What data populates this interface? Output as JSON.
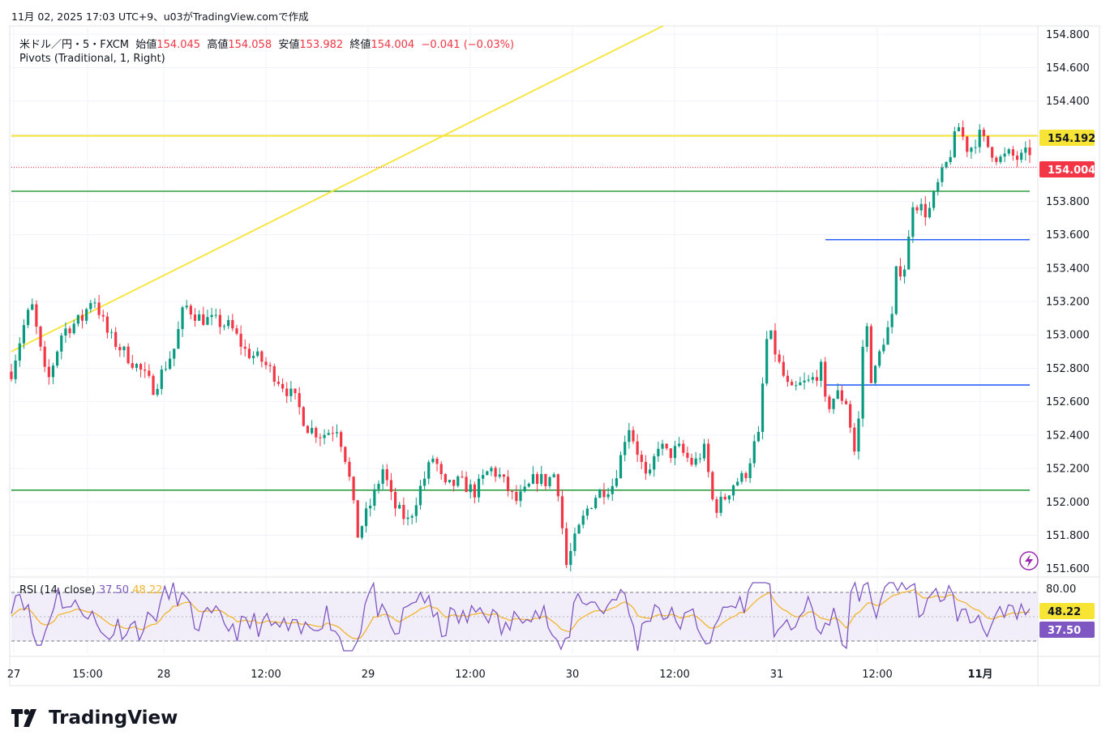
{
  "header": {
    "timestamp_text": "11月 02, 2025 17:03 UTC+9、u03がTradingView.comで作成"
  },
  "legend": {
    "symbol": "米ドル／円・5・FXCM",
    "open_label": "始値",
    "open": "154.045",
    "high_label": "高値",
    "high": "154.058",
    "low_label": "安値",
    "low": "153.982",
    "close_label": "終値",
    "close": "154.004",
    "change": "−0.041 (−0.03%)",
    "pivots": "Pivots (Traditional, 1, Right)"
  },
  "rsi_legend": {
    "name": "RSI (14, close)",
    "value": "37.50",
    "ma_value": "48.22"
  },
  "brand": {
    "name": "TradingView"
  },
  "colors": {
    "up": "#089981",
    "down": "#f23645",
    "trendline": "#f7e435",
    "pivot_green": "#2ea043",
    "pivot_blue": "#2962ff",
    "rsi_line": "#7e57c2",
    "rsi_ma": "#f2b530",
    "rsi_band": "#ede7f6"
  },
  "chart_data": [
    {
      "type": "candlestick",
      "symbol": "USD/JPY 5m FXCM",
      "ylim": [
        151.55,
        154.85
      ],
      "y_ticks": [
        "154.800",
        "154.600",
        "154.400",
        "154.200",
        "154.000",
        "153.800",
        "153.600",
        "153.400",
        "153.200",
        "153.000",
        "152.800",
        "152.600",
        "152.400",
        "152.200",
        "152.000",
        "151.800",
        "151.600"
      ],
      "x_ticks": [
        "27",
        "15:00",
        "28",
        "12:00",
        "29",
        "12:00",
        "30",
        "12:00",
        "31",
        "12:00",
        "11月"
      ],
      "price_labels": [
        {
          "value": "154.192",
          "kind": "trendline"
        },
        {
          "value": "154.004",
          "kind": "last"
        }
      ],
      "horizontal_levels": [
        {
          "price": 154.192,
          "color": "yellow"
        },
        {
          "price": 153.86,
          "color": "green"
        },
        {
          "price": 153.57,
          "color": "blue"
        },
        {
          "price": 152.7,
          "color": "blue"
        },
        {
          "price": 152.07,
          "color": "green"
        }
      ],
      "trendline": {
        "from": [
          0.0,
          152.9
        ],
        "to": [
          0.64,
          154.85
        ]
      },
      "path": [
        [
          0.0,
          152.78
        ],
        [
          0.012,
          153.05
        ],
        [
          0.02,
          153.18
        ],
        [
          0.035,
          152.7
        ],
        [
          0.05,
          153.02
        ],
        [
          0.07,
          153.1
        ],
        [
          0.08,
          153.24
        ],
        [
          0.095,
          153.0
        ],
        [
          0.11,
          152.9
        ],
        [
          0.125,
          152.8
        ],
        [
          0.14,
          152.68
        ],
        [
          0.15,
          152.8
        ],
        [
          0.16,
          152.92
        ],
        [
          0.17,
          153.18
        ],
        [
          0.185,
          153.1
        ],
        [
          0.2,
          153.08
        ],
        [
          0.215,
          153.05
        ],
        [
          0.23,
          152.9
        ],
        [
          0.245,
          152.85
        ],
        [
          0.26,
          152.75
        ],
        [
          0.28,
          152.6
        ],
        [
          0.29,
          152.45
        ],
        [
          0.305,
          152.4
        ],
        [
          0.32,
          152.45
        ],
        [
          0.33,
          152.22
        ],
        [
          0.34,
          151.8
        ],
        [
          0.355,
          152.02
        ],
        [
          0.365,
          152.2
        ],
        [
          0.375,
          151.98
        ],
        [
          0.39,
          151.88
        ],
        [
          0.4,
          152.06
        ],
        [
          0.415,
          152.28
        ],
        [
          0.425,
          152.08
        ],
        [
          0.44,
          152.12
        ],
        [
          0.455,
          152.06
        ],
        [
          0.47,
          152.2
        ],
        [
          0.48,
          152.15
        ],
        [
          0.495,
          152.0
        ],
        [
          0.505,
          152.06
        ],
        [
          0.515,
          152.15
        ],
        [
          0.525,
          152.12
        ],
        [
          0.535,
          152.18
        ],
        [
          0.545,
          151.62
        ],
        [
          0.555,
          151.8
        ],
        [
          0.565,
          151.95
        ],
        [
          0.575,
          152.05
        ],
        [
          0.59,
          152.1
        ],
        [
          0.6,
          152.3
        ],
        [
          0.605,
          152.48
        ],
        [
          0.615,
          152.3
        ],
        [
          0.625,
          152.1
        ],
        [
          0.635,
          152.35
        ],
        [
          0.645,
          152.28
        ],
        [
          0.655,
          152.32
        ],
        [
          0.67,
          152.22
        ],
        [
          0.68,
          152.32
        ],
        [
          0.685,
          152.15
        ],
        [
          0.69,
          151.95
        ],
        [
          0.7,
          152.02
        ],
        [
          0.71,
          152.12
        ],
        [
          0.72,
          152.15
        ],
        [
          0.73,
          152.35
        ],
        [
          0.735,
          152.4
        ],
        [
          0.74,
          152.95
        ],
        [
          0.745,
          153.0
        ],
        [
          0.755,
          152.8
        ],
        [
          0.765,
          152.65
        ],
        [
          0.775,
          152.7
        ],
        [
          0.785,
          152.72
        ],
        [
          0.795,
          152.8
        ],
        [
          0.8,
          152.55
        ],
        [
          0.81,
          152.65
        ],
        [
          0.82,
          152.6
        ],
        [
          0.83,
          152.22
        ],
        [
          0.835,
          152.9
        ],
        [
          0.84,
          153.05
        ],
        [
          0.845,
          152.7
        ],
        [
          0.855,
          152.95
        ],
        [
          0.865,
          153.1
        ],
        [
          0.87,
          153.45
        ],
        [
          0.875,
          153.35
        ],
        [
          0.88,
          153.5
        ],
        [
          0.885,
          153.8
        ],
        [
          0.89,
          153.78
        ],
        [
          0.9,
          153.72
        ],
        [
          0.91,
          153.9
        ],
        [
          0.92,
          154.05
        ],
        [
          0.93,
          154.25
        ],
        [
          0.94,
          154.1
        ],
        [
          0.95,
          154.2
        ],
        [
          0.96,
          154.12
        ],
        [
          0.97,
          154.05
        ],
        [
          0.98,
          154.08
        ],
        [
          0.99,
          154.05
        ],
        [
          1.0,
          154.1
        ]
      ]
    },
    {
      "type": "line",
      "name": "RSI (14, close)",
      "ylim": [
        20,
        80
      ],
      "y_ticks": [
        "80.00"
      ],
      "bands": [
        70,
        30
      ],
      "price_labels": [
        {
          "value": "48.22",
          "kind": "rsi_ma"
        },
        {
          "value": "37.50",
          "kind": "rsi"
        }
      ]
    }
  ]
}
